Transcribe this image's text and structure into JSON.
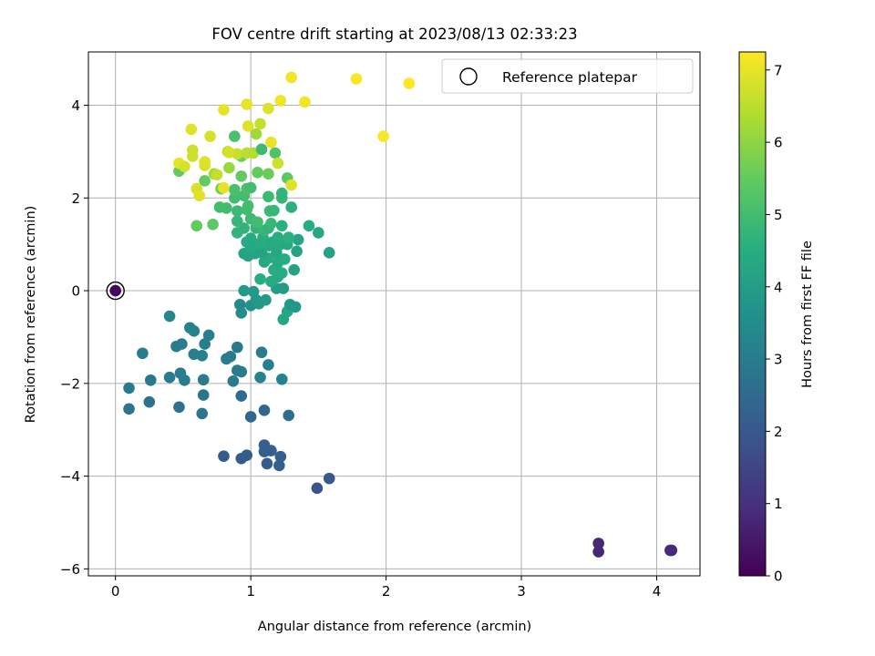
{
  "chart_data": {
    "type": "scatter",
    "title": "FOV centre drift starting at 2023/08/13 02:33:23",
    "xlabel": "Angular distance from reference (arcmin)",
    "ylabel": "Rotation from reference (arcmin)",
    "xlim": [
      -0.2,
      4.32
    ],
    "ylim": [
      -6.15,
      5.15
    ],
    "xticks": [
      0,
      1,
      2,
      3,
      4
    ],
    "xtick_labels": [
      "0",
      "1",
      "2",
      "3",
      "4"
    ],
    "yticks": [
      -6,
      -4,
      -2,
      0,
      2,
      4
    ],
    "ytick_labels": [
      "−6",
      "−4",
      "−2",
      "0",
      "2",
      "4"
    ],
    "grid": true,
    "legend": {
      "position": "top-right",
      "entries": [
        "Reference platepar"
      ]
    },
    "reference_point": {
      "x": 0,
      "y": 0,
      "hours": 0.1
    },
    "colorbar": {
      "label": "Hours from first FF file",
      "colormap": "viridis",
      "range": [
        0,
        7.25
      ],
      "ticks": [
        0,
        1,
        2,
        3,
        4,
        5,
        6,
        7
      ],
      "tick_labels": [
        "0",
        "1",
        "2",
        "3",
        "4",
        "5",
        "6",
        "7"
      ]
    },
    "series": [
      {
        "points": [
          {
            "x": 3.57,
            "y": -5.45,
            "h": 0.8
          },
          {
            "x": 3.57,
            "y": -5.63,
            "h": 0.8
          },
          {
            "x": 4.1,
            "y": -5.6,
            "h": 0.9
          },
          {
            "x": 4.11,
            "y": -5.6,
            "h": 0.85
          },
          {
            "x": 1.49,
            "y": -4.26,
            "h": 1.9
          },
          {
            "x": 1.58,
            "y": -4.05,
            "h": 2.0
          },
          {
            "x": 0.8,
            "y": -3.57,
            "h": 2.1
          },
          {
            "x": 0.93,
            "y": -3.62,
            "h": 2.1
          },
          {
            "x": 0.97,
            "y": -3.55,
            "h": 2.1
          },
          {
            "x": 1.1,
            "y": -3.33,
            "h": 2.2
          },
          {
            "x": 1.1,
            "y": -3.47,
            "h": 2.2
          },
          {
            "x": 1.15,
            "y": -3.45,
            "h": 2.2
          },
          {
            "x": 1.12,
            "y": -3.73,
            "h": 2.1
          },
          {
            "x": 1.21,
            "y": -3.77,
            "h": 2.2
          },
          {
            "x": 1.22,
            "y": -3.58,
            "h": 2.2
          },
          {
            "x": 1.0,
            "y": -2.72,
            "h": 2.4
          },
          {
            "x": 1.1,
            "y": -2.58,
            "h": 2.4
          },
          {
            "x": 1.28,
            "y": -2.69,
            "h": 2.6
          },
          {
            "x": 0.93,
            "y": -2.27,
            "h": 2.5
          },
          {
            "x": 0.1,
            "y": -2.55,
            "h": 2.8
          },
          {
            "x": 0.25,
            "y": -2.4,
            "h": 2.7
          },
          {
            "x": 0.47,
            "y": -2.51,
            "h": 2.7
          },
          {
            "x": 0.64,
            "y": -2.65,
            "h": 2.8
          },
          {
            "x": 0.65,
            "y": -2.25,
            "h": 2.8
          },
          {
            "x": 0.1,
            "y": -2.1,
            "h": 2.9
          },
          {
            "x": 0.26,
            "y": -1.93,
            "h": 2.9
          },
          {
            "x": 0.4,
            "y": -1.87,
            "h": 3.0
          },
          {
            "x": 0.48,
            "y": -1.78,
            "h": 3.0
          },
          {
            "x": 0.51,
            "y": -1.93,
            "h": 3.0
          },
          {
            "x": 0.65,
            "y": -1.92,
            "h": 3.0
          },
          {
            "x": 0.87,
            "y": -1.95,
            "h": 3.0
          },
          {
            "x": 0.9,
            "y": -1.72,
            "h": 3.0
          },
          {
            "x": 0.93,
            "y": -1.75,
            "h": 3.0
          },
          {
            "x": 0.82,
            "y": -1.47,
            "h": 3.0
          },
          {
            "x": 0.85,
            "y": -1.42,
            "h": 3.0
          },
          {
            "x": 0.9,
            "y": -1.22,
            "h": 2.9
          },
          {
            "x": 1.08,
            "y": -1.33,
            "h": 3.0
          },
          {
            "x": 1.13,
            "y": -1.6,
            "h": 3.1
          },
          {
            "x": 1.07,
            "y": -1.87,
            "h": 3.2
          },
          {
            "x": 1.23,
            "y": -1.91,
            "h": 3.2
          },
          {
            "x": 0.2,
            "y": -1.35,
            "h": 3.0
          },
          {
            "x": 0.45,
            "y": -1.2,
            "h": 3.0
          },
          {
            "x": 0.49,
            "y": -1.15,
            "h": 3.0
          },
          {
            "x": 0.58,
            "y": -1.37,
            "h": 3.1
          },
          {
            "x": 0.64,
            "y": -1.4,
            "h": 3.1
          },
          {
            "x": 0.66,
            "y": -1.15,
            "h": 3.1
          },
          {
            "x": 0.69,
            "y": -0.96,
            "h": 3.1
          },
          {
            "x": 0.55,
            "y": -0.8,
            "h": 3.2
          },
          {
            "x": 0.58,
            "y": -0.87,
            "h": 3.2
          },
          {
            "x": 0.4,
            "y": -0.55,
            "h": 3.3
          },
          {
            "x": 0.92,
            "y": -0.3,
            "h": 3.4
          },
          {
            "x": 0.93,
            "y": -0.48,
            "h": 3.5
          },
          {
            "x": 1.0,
            "y": -0.32,
            "h": 3.7
          },
          {
            "x": 1.04,
            "y": -0.2,
            "h": 3.8
          },
          {
            "x": 1.11,
            "y": -0.2,
            "h": 3.9
          },
          {
            "x": 1.06,
            "y": -0.28,
            "h": 3.8
          },
          {
            "x": 0.95,
            "y": 0.0,
            "h": 3.9
          },
          {
            "x": 1.02,
            "y": -0.02,
            "h": 3.9
          },
          {
            "x": 1.19,
            "y": 0.05,
            "h": 4.0
          },
          {
            "x": 1.24,
            "y": 0.05,
            "h": 4.0
          },
          {
            "x": 1.24,
            "y": -0.62,
            "h": 4.3
          },
          {
            "x": 1.27,
            "y": -0.45,
            "h": 4.3
          },
          {
            "x": 1.29,
            "y": -0.3,
            "h": 3.9
          },
          {
            "x": 1.33,
            "y": -0.35,
            "h": 3.8
          },
          {
            "x": 1.07,
            "y": 0.25,
            "h": 4.5
          },
          {
            "x": 1.15,
            "y": 0.2,
            "h": 4.4
          },
          {
            "x": 1.2,
            "y": 0.3,
            "h": 4.4
          },
          {
            "x": 1.23,
            "y": 0.38,
            "h": 4.5
          },
          {
            "x": 1.17,
            "y": 0.45,
            "h": 4.5
          },
          {
            "x": 1.32,
            "y": 0.45,
            "h": 4.2
          },
          {
            "x": 1.2,
            "y": 0.6,
            "h": 4.4
          },
          {
            "x": 1.25,
            "y": 0.68,
            "h": 4.5
          },
          {
            "x": 1.1,
            "y": 0.62,
            "h": 4.3
          },
          {
            "x": 1.13,
            "y": 0.7,
            "h": 4.4
          },
          {
            "x": 0.98,
            "y": 0.75,
            "h": 4.2
          },
          {
            "x": 0.95,
            "y": 0.8,
            "h": 4.2
          },
          {
            "x": 1.03,
            "y": 0.8,
            "h": 4.2
          },
          {
            "x": 1.08,
            "y": 0.82,
            "h": 4.2
          },
          {
            "x": 1.19,
            "y": 0.82,
            "h": 4.3
          },
          {
            "x": 1.34,
            "y": 0.85,
            "h": 4.2
          },
          {
            "x": 1.58,
            "y": 0.82,
            "h": 4.2
          },
          {
            "x": 1.0,
            "y": 0.92,
            "h": 4.3
          },
          {
            "x": 1.05,
            "y": 1.0,
            "h": 4.4
          },
          {
            "x": 1.13,
            "y": 0.97,
            "h": 4.4
          },
          {
            "x": 1.16,
            "y": 1.05,
            "h": 4.4
          },
          {
            "x": 1.22,
            "y": 1.0,
            "h": 4.4
          },
          {
            "x": 1.27,
            "y": 1.0,
            "h": 4.3
          },
          {
            "x": 1.35,
            "y": 1.1,
            "h": 4.2
          },
          {
            "x": 0.97,
            "y": 1.05,
            "h": 4.4
          },
          {
            "x": 1.0,
            "y": 1.13,
            "h": 4.4
          },
          {
            "x": 1.09,
            "y": 1.15,
            "h": 4.5
          },
          {
            "x": 1.2,
            "y": 1.15,
            "h": 4.5
          },
          {
            "x": 1.28,
            "y": 1.15,
            "h": 4.6
          },
          {
            "x": 1.5,
            "y": 1.25,
            "h": 4.3
          },
          {
            "x": 0.9,
            "y": 1.25,
            "h": 4.7
          },
          {
            "x": 0.95,
            "y": 1.35,
            "h": 4.7
          },
          {
            "x": 1.04,
            "y": 1.35,
            "h": 4.7
          },
          {
            "x": 1.1,
            "y": 1.3,
            "h": 4.8
          },
          {
            "x": 1.13,
            "y": 1.35,
            "h": 4.7
          },
          {
            "x": 1.23,
            "y": 1.4,
            "h": 4.6
          },
          {
            "x": 1.43,
            "y": 1.4,
            "h": 4.5
          },
          {
            "x": 0.9,
            "y": 1.5,
            "h": 4.8
          },
          {
            "x": 1.0,
            "y": 1.55,
            "h": 4.9
          },
          {
            "x": 1.05,
            "y": 1.48,
            "h": 5.0
          },
          {
            "x": 1.15,
            "y": 1.45,
            "h": 4.8
          },
          {
            "x": 0.9,
            "y": 1.72,
            "h": 4.9
          },
          {
            "x": 0.97,
            "y": 1.75,
            "h": 5.0
          },
          {
            "x": 1.14,
            "y": 1.72,
            "h": 4.9
          },
          {
            "x": 1.17,
            "y": 1.73,
            "h": 4.8
          },
          {
            "x": 1.3,
            "y": 1.8,
            "h": 4.6
          },
          {
            "x": 0.77,
            "y": 1.8,
            "h": 5.0
          },
          {
            "x": 0.82,
            "y": 1.78,
            "h": 5.0
          },
          {
            "x": 0.88,
            "y": 2.0,
            "h": 5.0
          },
          {
            "x": 0.95,
            "y": 2.05,
            "h": 5.0
          },
          {
            "x": 0.98,
            "y": 1.83,
            "h": 5.0
          },
          {
            "x": 1.13,
            "y": 2.03,
            "h": 4.9
          },
          {
            "x": 1.23,
            "y": 2.0,
            "h": 4.8
          },
          {
            "x": 1.23,
            "y": 2.1,
            "h": 4.7
          },
          {
            "x": 0.88,
            "y": 2.18,
            "h": 5.1
          },
          {
            "x": 0.97,
            "y": 2.2,
            "h": 5.1
          },
          {
            "x": 1.0,
            "y": 2.22,
            "h": 5.0
          },
          {
            "x": 0.72,
            "y": 1.43,
            "h": 5.4
          },
          {
            "x": 0.6,
            "y": 1.4,
            "h": 5.5
          },
          {
            "x": 0.47,
            "y": 2.58,
            "h": 5.5
          },
          {
            "x": 0.66,
            "y": 2.37,
            "h": 5.5
          },
          {
            "x": 0.78,
            "y": 2.2,
            "h": 5.7
          },
          {
            "x": 0.93,
            "y": 2.47,
            "h": 5.5
          },
          {
            "x": 1.05,
            "y": 2.55,
            "h": 5.5
          },
          {
            "x": 1.13,
            "y": 2.52,
            "h": 5.6
          },
          {
            "x": 1.27,
            "y": 2.43,
            "h": 5.4
          },
          {
            "x": 0.93,
            "y": 2.9,
            "h": 5.6
          },
          {
            "x": 1.18,
            "y": 2.97,
            "h": 5.2
          },
          {
            "x": 0.88,
            "y": 3.33,
            "h": 5.1
          },
          {
            "x": 0.84,
            "y": 2.65,
            "h": 6.1
          },
          {
            "x": 1.02,
            "y": 2.97,
            "h": 6.4
          },
          {
            "x": 1.2,
            "y": 2.75,
            "h": 6.7
          },
          {
            "x": 1.3,
            "y": 2.28,
            "h": 6.9
          },
          {
            "x": 0.73,
            "y": 2.52,
            "h": 6.2
          },
          {
            "x": 0.83,
            "y": 3.0,
            "h": 6.5
          },
          {
            "x": 0.9,
            "y": 2.95,
            "h": 6.6
          },
          {
            "x": 0.97,
            "y": 2.97,
            "h": 6.5
          },
          {
            "x": 0.6,
            "y": 2.2,
            "h": 6.8
          },
          {
            "x": 0.62,
            "y": 2.05,
            "h": 6.9
          },
          {
            "x": 0.47,
            "y": 2.75,
            "h": 7.0
          },
          {
            "x": 0.51,
            "y": 2.68,
            "h": 6.8
          },
          {
            "x": 0.57,
            "y": 2.9,
            "h": 6.7
          },
          {
            "x": 0.57,
            "y": 3.03,
            "h": 6.7
          },
          {
            "x": 0.66,
            "y": 2.7,
            "h": 6.8
          },
          {
            "x": 0.66,
            "y": 2.78,
            "h": 6.9
          },
          {
            "x": 0.75,
            "y": 2.5,
            "h": 6.6
          },
          {
            "x": 0.8,
            "y": 2.22,
            "h": 7.0
          },
          {
            "x": 0.84,
            "y": 2.98,
            "h": 6.8
          },
          {
            "x": 0.56,
            "y": 3.48,
            "h": 6.9
          },
          {
            "x": 0.7,
            "y": 3.33,
            "h": 6.8
          },
          {
            "x": 0.98,
            "y": 3.55,
            "h": 6.9
          },
          {
            "x": 1.04,
            "y": 3.38,
            "h": 6.2
          },
          {
            "x": 1.07,
            "y": 3.6,
            "h": 6.6
          },
          {
            "x": 1.13,
            "y": 3.93,
            "h": 6.9
          },
          {
            "x": 1.15,
            "y": 3.2,
            "h": 7.0
          },
          {
            "x": 0.8,
            "y": 3.9,
            "h": 7.0
          },
          {
            "x": 0.97,
            "y": 4.02,
            "h": 7.0
          },
          {
            "x": 1.22,
            "y": 4.1,
            "h": 7.1
          },
          {
            "x": 1.3,
            "y": 4.6,
            "h": 7.1
          },
          {
            "x": 1.4,
            "y": 4.07,
            "h": 7.1
          },
          {
            "x": 1.78,
            "y": 4.57,
            "h": 7.2
          },
          {
            "x": 1.98,
            "y": 3.33,
            "h": 7.2
          },
          {
            "x": 2.17,
            "y": 4.47,
            "h": 7.25
          },
          {
            "x": 1.08,
            "y": 3.05,
            "h": 4.9
          }
        ]
      }
    ]
  }
}
